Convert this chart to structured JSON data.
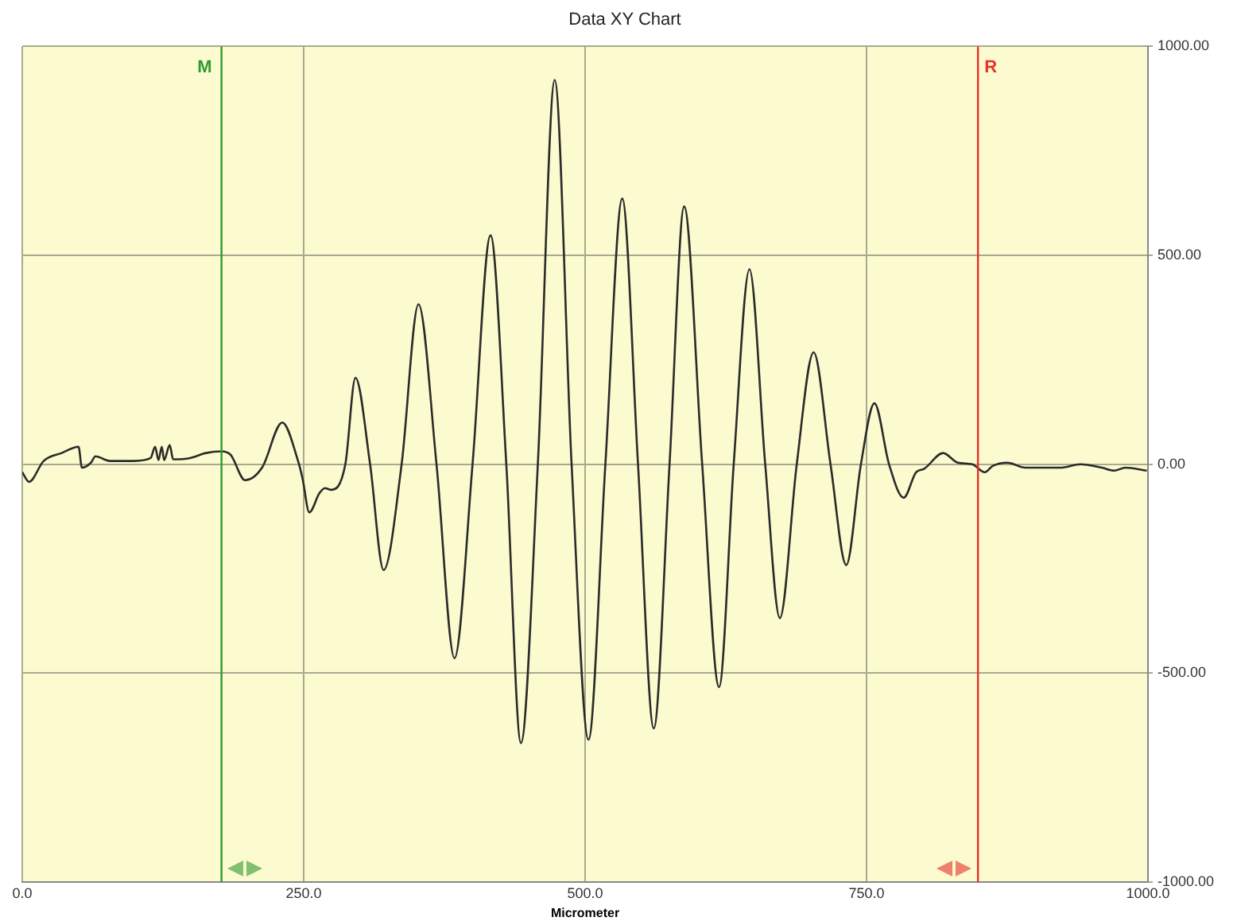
{
  "chart_data": {
    "type": "line",
    "title": "Data XY Chart",
    "xlabel": "Micrometer",
    "x": [
      0,
      6,
      19,
      35,
      50,
      53,
      61,
      65,
      78,
      99,
      114,
      118,
      121,
      124,
      126,
      131,
      134,
      149,
      163,
      177,
      185,
      198,
      213,
      231,
      245,
      249,
      255,
      264,
      269,
      274,
      287,
      296,
      309,
      321,
      337,
      352,
      368,
      384,
      400,
      416,
      430,
      443,
      458,
      473,
      488,
      503,
      518,
      533,
      547,
      561,
      575,
      588,
      604,
      619,
      632,
      646,
      660,
      673,
      688,
      703,
      718,
      732,
      745,
      757,
      770,
      783,
      794,
      801,
      818,
      831,
      844,
      855,
      862,
      875,
      891,
      922,
      940,
      959,
      970,
      980,
      999
    ],
    "series": [
      {
        "color": "#2b2b2b",
        "values": [
          -19,
          -42,
          8,
          27,
          42,
          -8,
          4,
          19,
          8,
          8,
          15,
          42,
          10,
          42,
          10,
          46,
          12,
          15,
          27,
          31,
          23,
          -38,
          -8,
          100,
          8,
          -34,
          -115,
          -69,
          -57,
          -61,
          0,
          207,
          0,
          -253,
          0,
          383,
          0,
          -464,
          0,
          548,
          0,
          -667,
          0,
          920,
          0,
          -659,
          0,
          636,
          0,
          -632,
          0,
          617,
          0,
          -533,
          0,
          467,
          0,
          -368,
          0,
          268,
          0,
          -241,
          0,
          146,
          0,
          -80,
          -19,
          -11,
          27,
          4,
          0,
          -19,
          -4,
          4,
          -8,
          -8,
          0,
          -8,
          -15,
          -8,
          -15
        ]
      }
    ],
    "xlim": [
      0,
      1000
    ],
    "xticks": [
      {
        "value": 0,
        "label": "0.0"
      },
      {
        "value": 250,
        "label": "250.0"
      },
      {
        "value": 500,
        "label": "500.0"
      },
      {
        "value": 750,
        "label": "750.0"
      },
      {
        "value": 1000,
        "label": "1000.0"
      }
    ],
    "ylim": [
      -1000,
      1000
    ],
    "yticks": [
      {
        "value": -1000,
        "label": "-1000.00"
      },
      {
        "value": -500,
        "label": "-500.00"
      },
      {
        "value": 0,
        "label": "0.00"
      },
      {
        "value": 500,
        "label": "500.00"
      },
      {
        "value": 1000,
        "label": "1000.00"
      }
    ],
    "grid": true,
    "legend": false,
    "marker": "none",
    "line_style": "solid",
    "ref_lines": [
      {
        "axis": "x",
        "value": 177,
        "label": "M",
        "color": "#2f9a2f"
      },
      {
        "axis": "x",
        "value": 849,
        "label": "R",
        "color": "#e8302a"
      }
    ]
  }
}
